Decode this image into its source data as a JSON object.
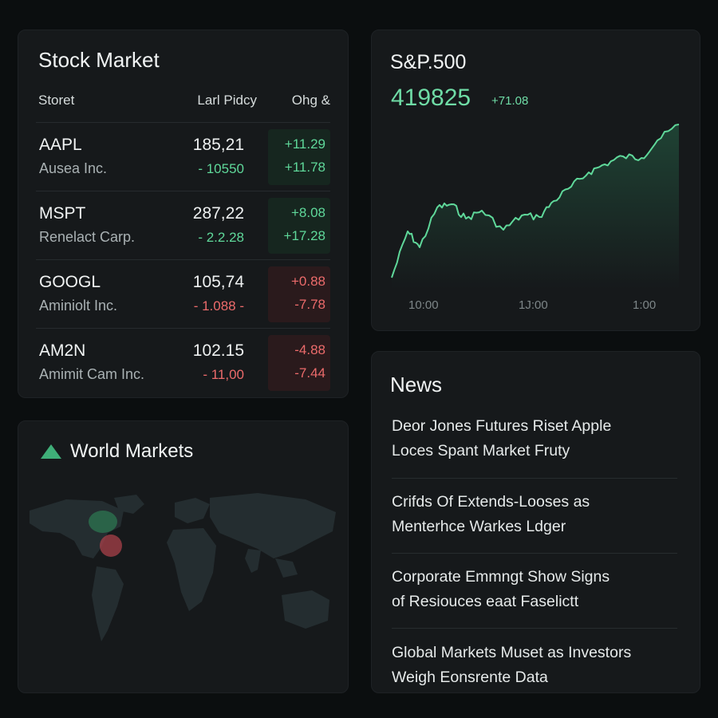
{
  "stock_market": {
    "title": "Stock Market",
    "headers": {
      "stock": "Storet",
      "price": "Larl Pidcy",
      "change": "Ohg &"
    },
    "rows": [
      {
        "symbol": "AAPL",
        "company": "Ausea Inc.",
        "price": "185,21",
        "price_change": "- 10550",
        "change_1": "+11.29",
        "change_2": "+11.78",
        "trend": "up"
      },
      {
        "symbol": "MSPT",
        "company": "Renelact Carp.",
        "price": "287,22",
        "price_change": "- 2.2.28",
        "change_1": "+8.08",
        "change_2": "+17.28",
        "trend": "up"
      },
      {
        "symbol": "GOOGL",
        "company": "Aminiolt Inc.",
        "price": "105,74",
        "price_change": "- 1.088 -",
        "change_1": "+0.88",
        "change_2": "-7.78",
        "trend": "down"
      },
      {
        "symbol": "AM2N",
        "company": "Amimit Cam Inc.",
        "price": "102.15",
        "price_change": "- 11,00",
        "change_1": "-4.88",
        "change_2": "-7.44",
        "trend": "down"
      }
    ]
  },
  "sp500": {
    "title": "S&P.500",
    "value": "419825",
    "change": "+71.08",
    "x_ticks": [
      "10:00",
      "1J:00",
      "1:00"
    ],
    "color": "#5fd89a"
  },
  "world_markets": {
    "title": "World Markets",
    "icon": "triangle-up-icon",
    "accent": "#3fae78"
  },
  "news": {
    "title": "News",
    "items": [
      {
        "line1": "Deor Jones Futures Riset Apple",
        "line2": "Loces Spant Market Fruty"
      },
      {
        "line1": "Crifds Of Extends-Looses as",
        "line2": "Menterhce Warkes Ldger"
      },
      {
        "line1": "Corporate Emmngt Show Signs",
        "line2": "of Resiouces eaat Faselictt"
      },
      {
        "line1": "Global Markets Muset as Investors",
        "line2": "Weigh Eonsrente Data"
      }
    ]
  },
  "colors": {
    "up": "#5fd89a",
    "down": "#ec6b6b",
    "background": "#0b0e0f",
    "card": "#16191b"
  }
}
